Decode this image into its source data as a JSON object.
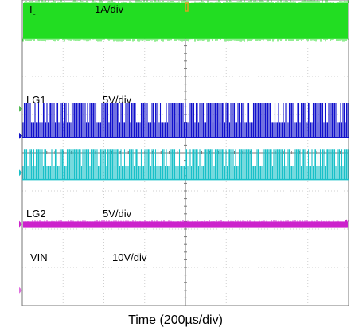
{
  "chart_data": {
    "type": "line",
    "title": "",
    "xlabel": "Time (200µs/div)",
    "ylabel": "",
    "divisions": {
      "x": 8,
      "y": 8
    },
    "grid": true,
    "channels": [
      {
        "id": "il",
        "name_main": "I",
        "name_sub": "L",
        "scale": "1A/div",
        "color": "#22dd22",
        "waveform": "band",
        "y_div": [
          0.0,
          1.1
        ]
      },
      {
        "id": "lg1",
        "name_main": "LG1",
        "name_sub": "",
        "scale": "5V/div",
        "color": "#1111cc",
        "waveform": "pulse",
        "y_div": [
          2.7,
          3.6
        ]
      },
      {
        "id": "ch3",
        "name_main": "",
        "name_sub": "",
        "scale": "",
        "color": "#19c0c8",
        "waveform": "pulse",
        "y_div": [
          3.9,
          4.7
        ]
      },
      {
        "id": "lg2",
        "name_main": "LG2",
        "name_sub": "",
        "scale": "5V/div",
        "color": "#cc22cc",
        "waveform": "flat",
        "y_div": [
          5.8,
          5.95
        ]
      },
      {
        "id": "vin",
        "name_main": "VIN",
        "name_sub": "",
        "scale": "10V/div",
        "color": "#ffffff",
        "waveform": "none",
        "y_div": [
          7.9,
          7.9
        ]
      }
    ]
  }
}
